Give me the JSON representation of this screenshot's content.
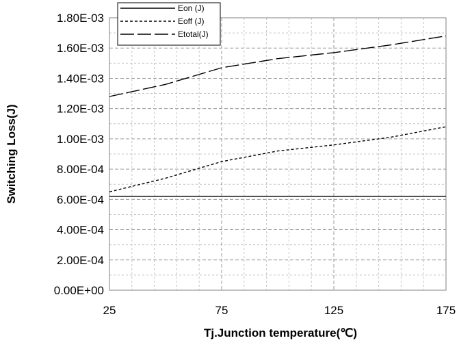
{
  "chart_data": {
    "type": "line",
    "xlabel": "Tj.Junction temperature(℃)",
    "ylabel": "Switching Loss(J)",
    "xlim": [
      25,
      175
    ],
    "ylim": [
      0,
      0.0018
    ],
    "x_ticks": [
      "25",
      "75",
      "125",
      "175"
    ],
    "y_ticks": [
      "0.00E+00",
      "2.00E-04",
      "4.00E-04",
      "6.00E-04",
      "8.00E-04",
      "1.00E-03",
      "1.20E-03",
      "1.40E-03",
      "1.60E-03",
      "1.80E-03"
    ],
    "grid": true,
    "legend_position": "top-left",
    "x": [
      25,
      50,
      75,
      100,
      125,
      150,
      175
    ],
    "series": [
      {
        "name": "Eon (J)",
        "style": "solid",
        "values": [
          0.00062,
          0.00062,
          0.00062,
          0.00062,
          0.00062,
          0.00062,
          0.00062
        ]
      },
      {
        "name": "Eoff (J)",
        "style": "dotted",
        "values": [
          0.00065,
          0.00074,
          0.00085,
          0.00092,
          0.00096,
          0.00101,
          0.00108
        ]
      },
      {
        "name": "Etotal(J)",
        "style": "dashed",
        "values": [
          0.00128,
          0.00136,
          0.00147,
          0.00153,
          0.00157,
          0.00162,
          0.00168
        ]
      }
    ]
  }
}
